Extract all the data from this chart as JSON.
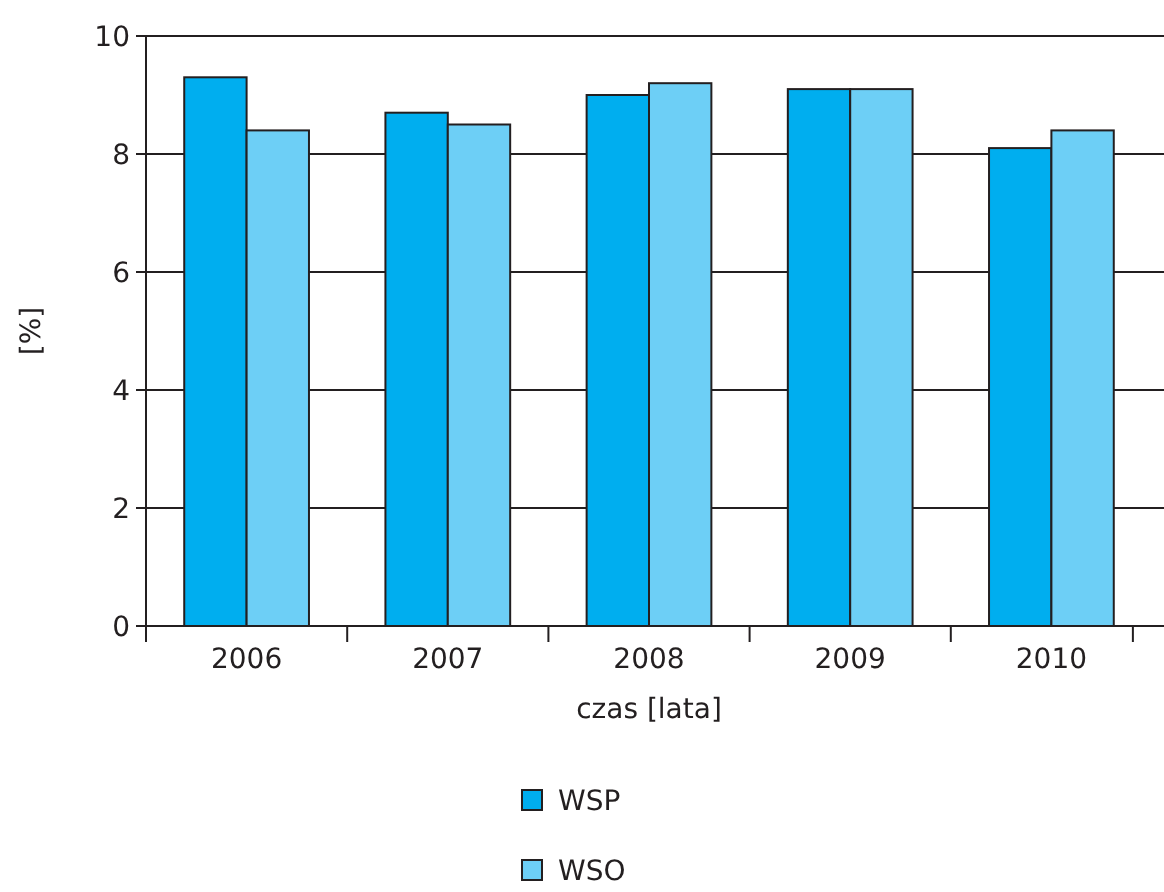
{
  "chart_data": {
    "type": "bar",
    "xlabel": "czas [lata]",
    "ylabel": "[%]",
    "categories": [
      "2006",
      "2007",
      "2008",
      "2009",
      "2010"
    ],
    "series": [
      {
        "name": "WSP",
        "color": "#00aeef",
        "values": [
          9.3,
          8.7,
          9.0,
          9.1,
          8.1
        ]
      },
      {
        "name": "WSO",
        "color": "#6dcff6",
        "values": [
          8.4,
          8.5,
          9.2,
          9.1,
          8.4
        ]
      }
    ],
    "ylim": [
      0,
      10
    ],
    "yticks": [
      0,
      2,
      4,
      6,
      8,
      10
    ],
    "grid": "y",
    "legend": "bottom"
  }
}
